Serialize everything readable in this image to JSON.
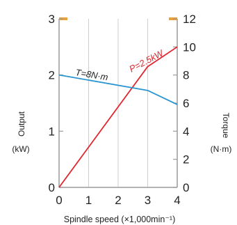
{
  "chart_data": {
    "type": "line",
    "xlabel": "Spindle speed (×1,000min⁻¹)",
    "x_ticks": [
      "0",
      "1",
      "2",
      "3",
      "4"
    ],
    "xlim": [
      0,
      4
    ],
    "y_left": {
      "label": [
        "Output",
        "(kW)"
      ],
      "ticks": [
        "0",
        "1",
        "2",
        "3"
      ],
      "lim": [
        0,
        3
      ]
    },
    "y_right": {
      "label": [
        "Torque",
        "(N·m)"
      ],
      "ticks": [
        "0",
        "2",
        "4",
        "6",
        "8",
        "10",
        "12"
      ],
      "lim": [
        0,
        12
      ]
    },
    "series": [
      {
        "name": "P=2.5kW",
        "axis": "left",
        "color": "#e0262e",
        "x": [
          0,
          3,
          4
        ],
        "y": [
          0,
          2.15,
          2.5
        ]
      },
      {
        "name": "T=8N·m",
        "axis": "right",
        "color": "#2a95d0",
        "x": [
          0,
          3,
          4
        ],
        "y": [
          8,
          6.9,
          5.9
        ]
      }
    ],
    "axis_color": "#e9a13a",
    "grid": "vertical"
  }
}
